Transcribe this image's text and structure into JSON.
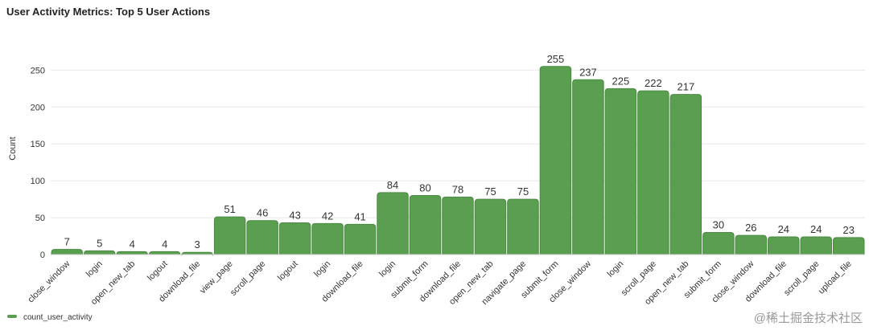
{
  "chart_data": {
    "type": "bar",
    "title": "User Activity Metrics: Top 5 User Actions",
    "y_label": "Count",
    "categories": [
      "close_window",
      "login",
      "open_new_tab",
      "logout",
      "download_file",
      "view_page",
      "scroll_page",
      "logout",
      "login",
      "download_file",
      "login",
      "submit_form",
      "download_file",
      "open_new_tab",
      "navigate_page",
      "submit_form",
      "close_window",
      "login",
      "scroll_page",
      "open_new_tab",
      "submit_form",
      "close_window",
      "download_file",
      "scroll_page",
      "upload_file"
    ],
    "series": [
      {
        "name": "count_user_activity",
        "color": "#5a9e50",
        "values": [
          7,
          5,
          4,
          4,
          3,
          51,
          46,
          43,
          42,
          41,
          84,
          80,
          78,
          75,
          75,
          255,
          237,
          225,
          222,
          217,
          30,
          26,
          24,
          24,
          23
        ]
      }
    ],
    "ylim": [
      0,
      270
    ],
    "yticks": [
      0,
      50,
      100,
      150,
      200,
      250
    ],
    "grid": true,
    "legend": "bottom-left",
    "watermark": "@稀土掘金技术社区"
  }
}
